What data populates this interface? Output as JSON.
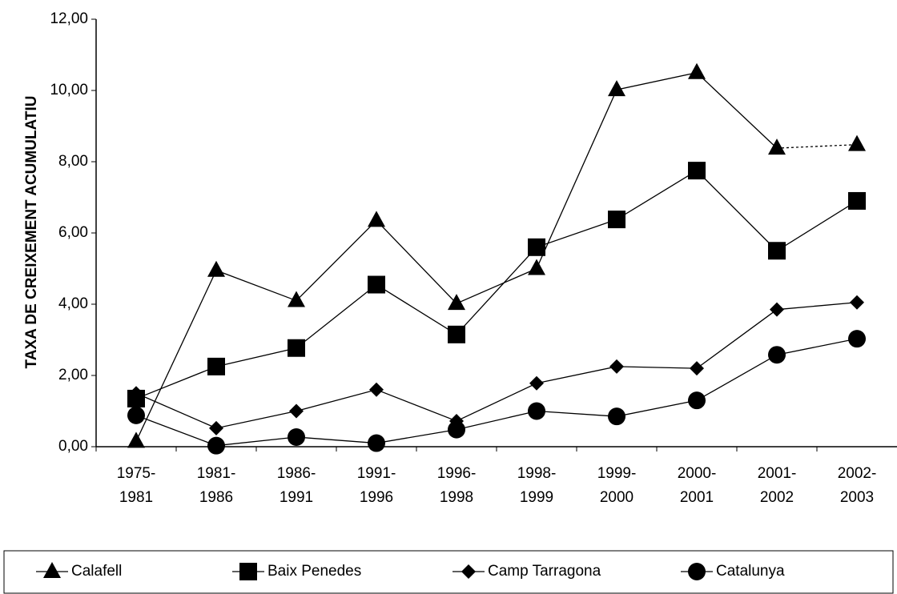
{
  "chart_data": {
    "type": "line",
    "y_label": "TAXA DE CREIXEMENT ACUMULATIU",
    "categories": [
      "1975-1981",
      "1981-1986",
      "1986-1991",
      "1991-1996",
      "1996-1998",
      "1998-1999",
      "1999-2000",
      "2000-2001",
      "2001-2002",
      "2002-2003"
    ],
    "series": [
      {
        "name": "Calafell",
        "color": "#000000",
        "marker": "triangle",
        "dashed_last_segment": true,
        "values": [
          0.15,
          4.95,
          4.1,
          6.35,
          4.02,
          5.0,
          10.02,
          10.5,
          8.38,
          8.48
        ]
      },
      {
        "name": "Baix Penedes",
        "color": "#000000",
        "marker": "square",
        "values": [
          1.35,
          2.25,
          2.77,
          4.55,
          3.15,
          5.6,
          6.38,
          7.75,
          5.5,
          6.9
        ]
      },
      {
        "name": "Camp Tarragona",
        "color": "#000000",
        "marker": "diamond",
        "values": [
          1.5,
          0.52,
          1.0,
          1.6,
          0.72,
          1.78,
          2.25,
          2.2,
          3.85,
          4.05
        ]
      },
      {
        "name": "Catalunya",
        "color": "#000000",
        "marker": "circle",
        "values": [
          0.88,
          0.03,
          0.27,
          0.1,
          0.48,
          1.0,
          0.85,
          1.3,
          2.58,
          3.03
        ]
      }
    ],
    "ylim": [
      0,
      12
    ],
    "yticks": [
      {
        "value": 0,
        "label": "0,00"
      },
      {
        "value": 2,
        "label": "2,00"
      },
      {
        "value": 4,
        "label": "4,00"
      },
      {
        "value": 6,
        "label": "6,00"
      },
      {
        "value": 8,
        "label": "8,00"
      },
      {
        "value": 10,
        "label": "10,00"
      },
      {
        "value": 12,
        "label": "12,00"
      }
    ],
    "grid": false,
    "legend": "bottom"
  }
}
